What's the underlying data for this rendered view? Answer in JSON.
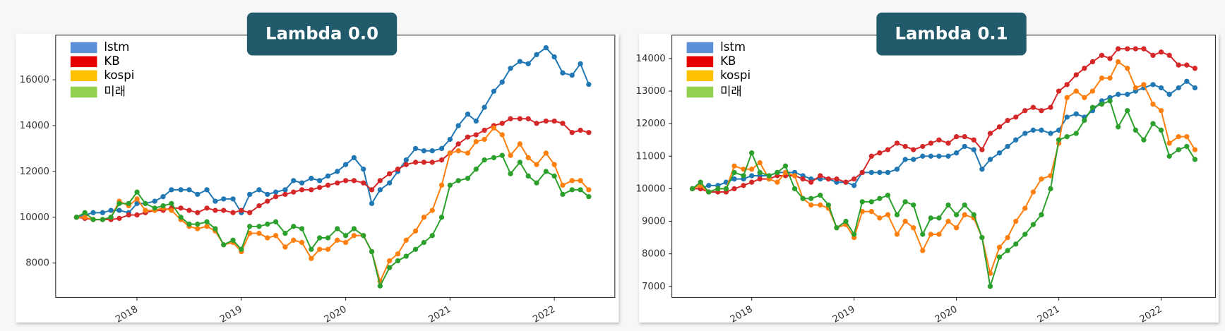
{
  "chart_data": [
    {
      "type": "line",
      "title": "Lambda 0.0",
      "x": [
        2017.42,
        2017.5,
        2017.58,
        2017.67,
        2017.75,
        2017.83,
        2017.92,
        2018.0,
        2018.08,
        2018.17,
        2018.25,
        2018.33,
        2018.42,
        2018.5,
        2018.58,
        2018.67,
        2018.75,
        2018.83,
        2018.92,
        2019.0,
        2019.08,
        2019.17,
        2019.25,
        2019.33,
        2019.42,
        2019.5,
        2019.58,
        2019.67,
        2019.75,
        2019.83,
        2019.92,
        2020.0,
        2020.08,
        2020.17,
        2020.25,
        2020.33,
        2020.42,
        2020.5,
        2020.58,
        2020.67,
        2020.75,
        2020.83,
        2020.92,
        2021.0,
        2021.08,
        2021.17,
        2021.25,
        2021.33,
        2021.42,
        2021.5,
        2021.58,
        2021.67,
        2021.75,
        2021.83,
        2021.92,
        2022.0,
        2022.08,
        2022.17,
        2022.25,
        2022.33
      ],
      "xlim": [
        2017.22,
        2022.58
      ],
      "xticks": [
        2018,
        2019,
        2020,
        2021,
        2022
      ],
      "ylim": [
        6500,
        17950
      ],
      "yticks": [
        8000,
        10000,
        12000,
        14000,
        16000
      ],
      "legend": "upper left",
      "series": [
        {
          "name": "lstm",
          "color": "#1f77b4",
          "legend_color": "#5b8fd6",
          "values": [
            10000,
            10100,
            10200,
            10200,
            10300,
            10300,
            10200,
            10600,
            10600,
            10700,
            10900,
            11200,
            11200,
            11200,
            11000,
            11200,
            10700,
            10800,
            10800,
            10200,
            11000,
            11200,
            11000,
            11100,
            11200,
            11600,
            11500,
            11700,
            11600,
            11800,
            12000,
            12300,
            12600,
            12100,
            10600,
            11200,
            11500,
            12000,
            12500,
            13000,
            12900,
            12900,
            13000,
            13400,
            14000,
            14500,
            14200,
            14800,
            15500,
            15900,
            16500,
            16800,
            16700,
            17100,
            17400,
            17000,
            16300,
            16200,
            16700,
            15800
          ]
        },
        {
          "name": "KB",
          "color": "#d62728",
          "legend_color": "#e60000",
          "values": [
            10000,
            9950,
            9900,
            9900,
            9900,
            9950,
            10100,
            10100,
            10200,
            10300,
            10300,
            10400,
            10400,
            10300,
            10200,
            10400,
            10300,
            10300,
            10200,
            10300,
            10200,
            10500,
            10700,
            10900,
            11000,
            11100,
            11200,
            11200,
            11300,
            11400,
            11500,
            11600,
            11600,
            11500,
            11200,
            11600,
            11900,
            12100,
            12300,
            12400,
            12400,
            12400,
            12500,
            12800,
            13200,
            13500,
            13600,
            13800,
            14000,
            14100,
            14300,
            14300,
            14300,
            14100,
            14200,
            14200,
            14100,
            13700,
            13800,
            13700
          ]
        },
        {
          "name": "kospi",
          "color": "#ff7f0e",
          "legend_color": "#ffc000",
          "values": [
            10000,
            10000,
            9900,
            9900,
            10000,
            10700,
            10500,
            10800,
            10300,
            10300,
            10400,
            10300,
            9900,
            9600,
            9500,
            9600,
            9400,
            8800,
            8900,
            8500,
            9300,
            9300,
            9100,
            9200,
            8700,
            9000,
            8900,
            8200,
            8600,
            8600,
            9000,
            8900,
            9200,
            9200,
            8500,
            7200,
            8100,
            8400,
            9000,
            9400,
            10000,
            10300,
            11400,
            12800,
            12900,
            12800,
            13300,
            13400,
            13900,
            13600,
            12700,
            13200,
            12600,
            12300,
            12800,
            12300,
            11400,
            11600,
            11600,
            11200
          ]
        },
        {
          "name": "미래",
          "color": "#2ca02c",
          "legend_color": "#92d050",
          "values": [
            10000,
            10200,
            9900,
            9900,
            10000,
            10600,
            10600,
            11100,
            10600,
            10400,
            10500,
            10600,
            10000,
            9700,
            9700,
            9800,
            9500,
            8800,
            9000,
            8600,
            9600,
            9600,
            9700,
            9800,
            9300,
            9600,
            9500,
            8600,
            9100,
            9100,
            9500,
            9200,
            9500,
            9200,
            8500,
            7000,
            7800,
            8100,
            8300,
            8600,
            8900,
            9200,
            10000,
            11400,
            11600,
            11700,
            12100,
            12500,
            12600,
            12700,
            11900,
            12400,
            11800,
            11500,
            12000,
            11800,
            11000,
            11200,
            11200,
            10900
          ]
        }
      ]
    },
    {
      "type": "line",
      "title": "Lambda 0.1",
      "x": [
        2017.42,
        2017.5,
        2017.58,
        2017.67,
        2017.75,
        2017.83,
        2017.92,
        2018.0,
        2018.08,
        2018.17,
        2018.25,
        2018.33,
        2018.42,
        2018.5,
        2018.58,
        2018.67,
        2018.75,
        2018.83,
        2018.92,
        2019.0,
        2019.08,
        2019.17,
        2019.25,
        2019.33,
        2019.42,
        2019.5,
        2019.58,
        2019.67,
        2019.75,
        2019.83,
        2019.92,
        2020.0,
        2020.08,
        2020.17,
        2020.25,
        2020.33,
        2020.42,
        2020.5,
        2020.58,
        2020.67,
        2020.75,
        2020.83,
        2020.92,
        2021.0,
        2021.08,
        2021.17,
        2021.25,
        2021.33,
        2021.42,
        2021.5,
        2021.58,
        2021.67,
        2021.75,
        2021.83,
        2021.92,
        2022.0,
        2022.08,
        2022.17,
        2022.25,
        2022.33
      ],
      "xlim": [
        2017.22,
        2022.53
      ],
      "xticks": [
        2018,
        2019,
        2020,
        2021,
        2022
      ],
      "ylim": [
        6660,
        14720
      ],
      "yticks": [
        7000,
        8000,
        9000,
        10000,
        11000,
        12000,
        13000,
        14000
      ],
      "legend": "upper left",
      "series": [
        {
          "name": "lstm",
          "color": "#1f77b4",
          "legend_color": "#5b8fd6",
          "values": [
            10000,
            10000,
            10100,
            10100,
            10200,
            10300,
            10300,
            10400,
            10400,
            10400,
            10500,
            10500,
            10500,
            10400,
            10300,
            10300,
            10300,
            10200,
            10200,
            10100,
            10500,
            10500,
            10500,
            10500,
            10600,
            10900,
            10900,
            11000,
            11000,
            11000,
            11000,
            11100,
            11300,
            11200,
            10600,
            10900,
            11100,
            11300,
            11500,
            11700,
            11800,
            11800,
            11700,
            11800,
            12200,
            12300,
            12200,
            12400,
            12700,
            12800,
            12900,
            12900,
            13000,
            13100,
            13200,
            13100,
            12900,
            13100,
            13300,
            13100
          ]
        },
        {
          "name": "KB",
          "color": "#d62728",
          "legend_color": "#e60000",
          "values": [
            10000,
            10000,
            9900,
            9900,
            9900,
            10000,
            10100,
            10200,
            10300,
            10300,
            10400,
            10400,
            10400,
            10300,
            10200,
            10400,
            10300,
            10300,
            10200,
            10300,
            10500,
            11000,
            11100,
            11200,
            11400,
            11300,
            11200,
            11300,
            11400,
            11500,
            11400,
            11600,
            11600,
            11500,
            11200,
            11700,
            11900,
            12100,
            12200,
            12400,
            12500,
            12400,
            12500,
            13000,
            13200,
            13500,
            13700,
            13900,
            14100,
            14000,
            14300,
            14300,
            14300,
            14300,
            14100,
            14200,
            14100,
            13800,
            13800,
            13700
          ]
        },
        {
          "name": "kospi",
          "color": "#ff7f0e",
          "legend_color": "#ffc000",
          "values": [
            10000,
            10100,
            9900,
            10000,
            10000,
            10700,
            10600,
            10600,
            10800,
            10300,
            10200,
            10500,
            10400,
            9700,
            9500,
            9500,
            9400,
            8800,
            8900,
            8500,
            9300,
            9300,
            9100,
            9200,
            8600,
            9000,
            8800,
            8100,
            8600,
            8600,
            9000,
            8800,
            9200,
            9100,
            8500,
            7400,
            8200,
            8500,
            9000,
            9400,
            9900,
            10300,
            10400,
            11400,
            12800,
            13000,
            12800,
            13000,
            13400,
            13400,
            13900,
            13700,
            13100,
            13200,
            12600,
            12400,
            11400,
            11600,
            11600,
            11200
          ]
        },
        {
          "name": "미래",
          "color": "#2ca02c",
          "legend_color": "#92d050",
          "values": [
            10000,
            10200,
            9900,
            10000,
            10000,
            10500,
            10400,
            11100,
            10500,
            10400,
            10500,
            10700,
            10000,
            9700,
            9700,
            9800,
            9500,
            8800,
            9000,
            8600,
            9600,
            9600,
            9700,
            9800,
            9200,
            9600,
            9500,
            8600,
            9100,
            9100,
            9500,
            9200,
            9500,
            9200,
            8500,
            7000,
            7900,
            8100,
            8300,
            8600,
            8900,
            9200,
            10000,
            11500,
            11600,
            11700,
            12100,
            12500,
            12600,
            12700,
            11900,
            12400,
            11800,
            11500,
            12000,
            11800,
            11000,
            11200,
            11300,
            10900
          ]
        }
      ]
    }
  ]
}
